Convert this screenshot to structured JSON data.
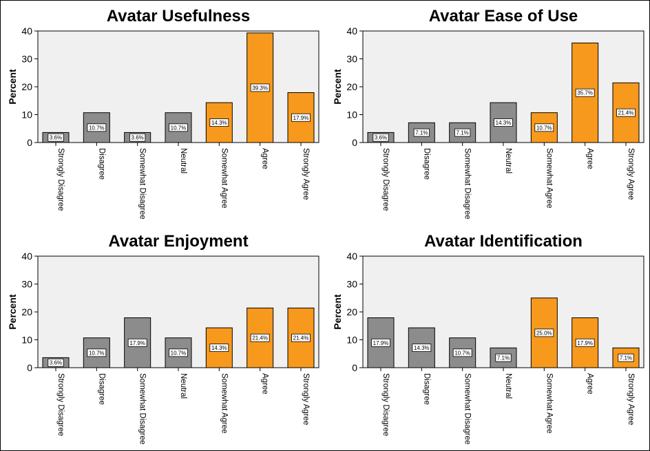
{
  "colors": {
    "neutral_bar": "#8c8c8c",
    "positive_bar": "#f7991c",
    "plot_bg": "#f0f0f0",
    "bar_stroke": "#000000"
  },
  "chart_data": [
    {
      "type": "bar",
      "title": "Avatar Usefulness",
      "ylabel": "Percent",
      "xlabel": "",
      "ylim": [
        0,
        40
      ],
      "yticks": [
        0,
        10,
        20,
        30,
        40
      ],
      "grid": false,
      "categories": [
        "Strongly Disagree",
        "Disagree",
        "Somewhat Disagree",
        "Neutral",
        "Somewhat Agree",
        "Agree",
        "Strongly Agree"
      ],
      "values": [
        3.6,
        10.7,
        3.6,
        10.7,
        14.3,
        39.3,
        17.9
      ],
      "data_labels": [
        "3.6%",
        "10.7%",
        "3.6%",
        "10.7%",
        "14.3%",
        "39.3%",
        "17.9%"
      ],
      "bar_colors": [
        "#8c8c8c",
        "#8c8c8c",
        "#8c8c8c",
        "#8c8c8c",
        "#f7991c",
        "#f7991c",
        "#f7991c"
      ]
    },
    {
      "type": "bar",
      "title": "Avatar Ease of Use",
      "ylabel": "Percent",
      "xlabel": "",
      "ylim": [
        0,
        40
      ],
      "yticks": [
        0,
        10,
        20,
        30,
        40
      ],
      "grid": false,
      "categories": [
        "Strongly Disagree",
        "Disagree",
        "Somewhat Disagree",
        "Neutral",
        "Somewhat Agree",
        "Agree",
        "Strongly Agree"
      ],
      "values": [
        3.6,
        7.1,
        7.1,
        14.3,
        10.7,
        35.7,
        21.4
      ],
      "data_labels": [
        "3.6%",
        "7.1%",
        "7.1%",
        "14.3%",
        "10.7%",
        "35.7%",
        "21.4%"
      ],
      "bar_colors": [
        "#8c8c8c",
        "#8c8c8c",
        "#8c8c8c",
        "#8c8c8c",
        "#f7991c",
        "#f7991c",
        "#f7991c"
      ]
    },
    {
      "type": "bar",
      "title": "Avatar Enjoyment",
      "ylabel": "Percent",
      "xlabel": "",
      "ylim": [
        0,
        40
      ],
      "yticks": [
        0,
        10,
        20,
        30,
        40
      ],
      "grid": false,
      "categories": [
        "Strongly Disagree",
        "Disagree",
        "Somewhat Disagree",
        "Neutral",
        "Somewhat Agree",
        "Agree",
        "Strongly Agree"
      ],
      "values": [
        3.6,
        10.7,
        17.9,
        10.7,
        14.3,
        21.4,
        21.4
      ],
      "data_labels": [
        "3.6%",
        "10.7%",
        "17.9%",
        "10.7%",
        "14.3%",
        "21.4%",
        "21.4%"
      ],
      "bar_colors": [
        "#8c8c8c",
        "#8c8c8c",
        "#8c8c8c",
        "#8c8c8c",
        "#f7991c",
        "#f7991c",
        "#f7991c"
      ]
    },
    {
      "type": "bar",
      "title": "Avatar Identification",
      "ylabel": "Percent",
      "xlabel": "",
      "ylim": [
        0,
        40
      ],
      "yticks": [
        0,
        10,
        20,
        30,
        40
      ],
      "grid": false,
      "categories": [
        "Strongly Disagree",
        "Disagree",
        "Somewhat Disagree",
        "Neutral",
        "Somewhat Agree",
        "Agree",
        "Strongly Agree"
      ],
      "values": [
        17.9,
        14.3,
        10.7,
        7.1,
        25.0,
        17.9,
        7.1
      ],
      "data_labels": [
        "17.9%",
        "14.3%",
        "10.7%",
        "7.1%",
        "25.0%",
        "17.9%",
        "7.1%"
      ],
      "bar_colors": [
        "#8c8c8c",
        "#8c8c8c",
        "#8c8c8c",
        "#8c8c8c",
        "#f7991c",
        "#f7991c",
        "#f7991c"
      ]
    }
  ]
}
